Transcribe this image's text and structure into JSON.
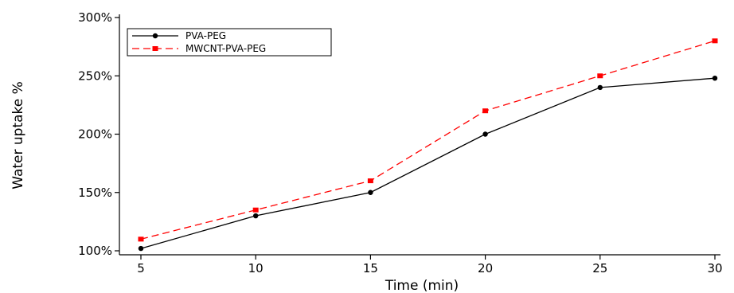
{
  "chart_data": {
    "type": "line",
    "title": "",
    "xlabel": "Time (min)",
    "ylabel": "Water uptake %",
    "x": [
      5,
      10,
      15,
      20,
      25,
      30
    ],
    "x_tick_labels": [
      "5",
      "10",
      "15",
      "20",
      "25",
      "30"
    ],
    "y_tick_values": [
      100,
      150,
      200,
      250,
      300
    ],
    "y_tick_labels": [
      "100%",
      "150%",
      "200%",
      "250%",
      "300%"
    ],
    "ylim": [
      100,
      300
    ],
    "xlim": [
      5,
      30
    ],
    "grid": false,
    "legend_position": "top-left",
    "series": [
      {
        "name": "PVA-PEG",
        "values": [
          102,
          130,
          150,
          200,
          240,
          248
        ],
        "color": "#000000",
        "line_style": "solid",
        "marker": "circle"
      },
      {
        "name": "MWCNT-PVA-PEG",
        "values": [
          110,
          135,
          160,
          220,
          250,
          280
        ],
        "color": "#ff0000",
        "line_style": "dashed",
        "marker": "square"
      }
    ]
  }
}
